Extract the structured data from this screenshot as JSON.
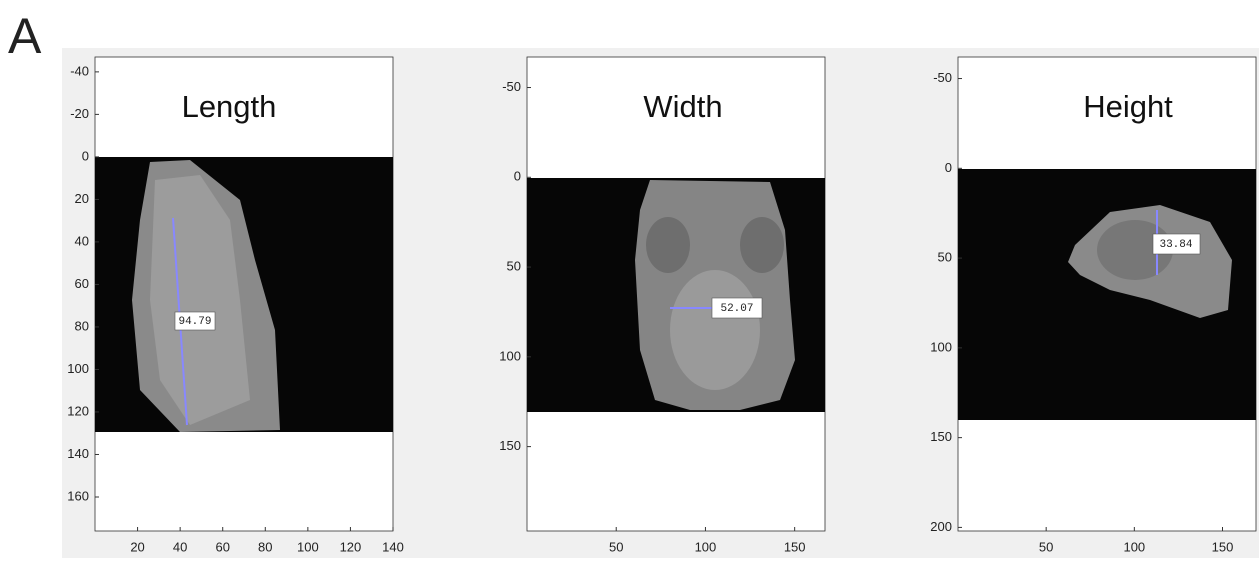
{
  "panel_label": "A",
  "panels": [
    {
      "title": "Length",
      "measurement": "94.79",
      "xlim": [
        0,
        140
      ],
      "ylim": [
        -47,
        176
      ],
      "xticks": [
        20,
        40,
        60,
        80,
        100,
        120,
        140
      ],
      "yticks": [
        -40,
        -20,
        0,
        20,
        40,
        60,
        80,
        100,
        120,
        140,
        160
      ]
    },
    {
      "title": "Width",
      "measurement": "52.07",
      "xlim": [
        0,
        167
      ],
      "ylim": [
        -67,
        197
      ],
      "xticks": [
        50,
        100,
        150
      ],
      "yticks": [
        -50,
        0,
        50,
        100,
        150
      ]
    },
    {
      "title": "Height",
      "measurement": "33.84",
      "xlim": [
        0,
        169
      ],
      "ylim": [
        -62,
        202
      ],
      "xticks": [
        50,
        100,
        150
      ],
      "yticks": [
        -50,
        0,
        50,
        100,
        150,
        200
      ]
    }
  ]
}
